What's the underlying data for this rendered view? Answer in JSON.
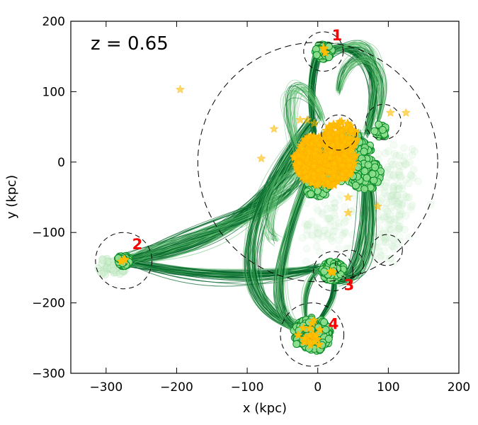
{
  "chart_data": {
    "type": "scatter",
    "title": "z = 0.65",
    "xlabel": "x (kpc)",
    "ylabel": "y (kpc)",
    "xlim": [
      -350,
      200
    ],
    "ylim": [
      -300,
      200
    ],
    "xticks": [
      -300,
      -200,
      -100,
      0,
      100,
      200
    ],
    "yticks": [
      -300,
      -200,
      -100,
      0,
      100,
      200
    ],
    "xtick_labels": [
      "−300",
      "−200",
      "−100",
      "0",
      "100",
      "200"
    ],
    "ytick_labels": [
      "−300",
      "−200",
      "−100",
      "0",
      "100",
      "200"
    ],
    "colors": {
      "particle_fill": "#8fe08f",
      "particle_edge": "#0a8a28",
      "faint_particle": "#cfeecf",
      "stream_dark": "#006428",
      "stream_light": "#5fbf70",
      "star_fill": "#ffc000",
      "star_edge": "#ffb000",
      "label": "#ff0000",
      "circle": "#000000"
    },
    "halos": [
      {
        "label": "1",
        "center": [
          8,
          157
        ],
        "radius": 28,
        "cluster_radius": 12,
        "label_pos": [
          20,
          173
        ]
      },
      {
        "label": "2",
        "center": [
          -275,
          -140
        ],
        "radius": 40,
        "cluster_radius": 9,
        "label_pos": [
          -263,
          -124
        ]
      },
      {
        "label": "3",
        "center": [
          22,
          -155
        ],
        "radius": 28,
        "cluster_radius": 16,
        "label_pos": [
          37,
          -182
        ]
      },
      {
        "label": "4",
        "center": [
          -8,
          -245
        ],
        "radius": 45,
        "cluster_radius": 27,
        "label_pos": [
          15,
          -237
        ]
      }
    ],
    "host_circle": {
      "center": [
        0,
        0
      ],
      "radius": 170
    },
    "sub_circles": [
      {
        "center": [
          30,
          42
        ],
        "radius": 25
      },
      {
        "center": [
          93,
          57
        ],
        "radius": 25
      },
      {
        "center": [
          98,
          -125
        ],
        "radius": 22
      },
      {
        "center": [
          45,
          -145
        ],
        "radius": 20
      }
    ],
    "main_body_center": [
      10,
      -5
    ],
    "isolated_stars": [
      [
        -195,
        103
      ],
      [
        -62,
        47
      ],
      [
        -80,
        5
      ],
      [
        103,
        70
      ],
      [
        125,
        70
      ],
      [
        85,
        -63
      ],
      [
        43,
        -72
      ],
      [
        43,
        -50
      ],
      [
        -25,
        60
      ],
      [
        -15,
        60
      ],
      [
        -5,
        55
      ]
    ]
  }
}
